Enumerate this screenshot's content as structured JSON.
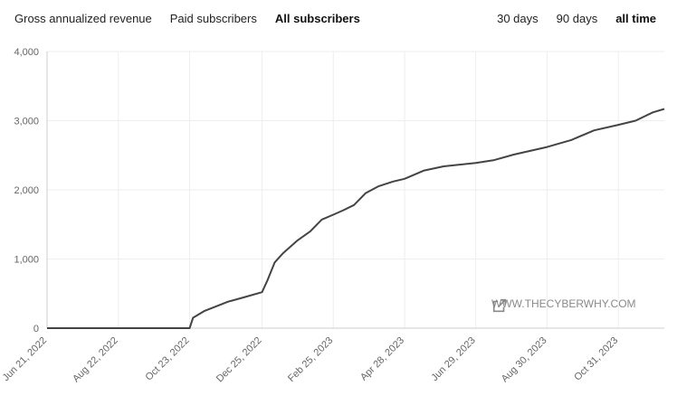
{
  "metric_tabs": [
    {
      "label": "Gross annualized revenue",
      "active": false
    },
    {
      "label": "Paid subscribers",
      "active": false
    },
    {
      "label": "All subscribers",
      "active": true
    }
  ],
  "range_tabs": [
    {
      "label": "30 days",
      "active": false
    },
    {
      "label": "90 days",
      "active": false
    },
    {
      "label": "all time",
      "active": true
    }
  ],
  "watermark": {
    "text": "WWW.THECYBERWHY.COM",
    "icon": "external-link-icon"
  },
  "colors": {
    "line": "#444444",
    "grid": "#eeeeee",
    "axis": "#cccccc"
  },
  "chart_data": {
    "type": "line",
    "title": "",
    "xlabel": "",
    "ylabel": "",
    "ylim": [
      0,
      4000
    ],
    "y_ticks": [
      "4,000",
      "3,000",
      "2,000",
      "1,000",
      "0"
    ],
    "x_ticks": [
      "Jun 21, 2022",
      "Aug 22, 2022",
      "Oct 23, 2022",
      "Dec 25, 2022",
      "Feb 25, 2023",
      "Apr 28, 2023",
      "Jun 29, 2023",
      "Aug 30, 2023",
      "Oct 31, 2023"
    ],
    "grid": true,
    "series": [
      {
        "x": [
          "2022-06-21",
          "2022-08-22",
          "2022-10-23",
          "2022-10-26",
          "2022-11-05",
          "2022-11-25",
          "2022-12-10",
          "2022-12-25",
          "2022-12-30",
          "2023-01-05",
          "2023-01-12",
          "2023-01-25",
          "2023-02-05",
          "2023-02-15",
          "2023-02-25",
          "2023-03-05",
          "2023-03-15",
          "2023-03-25",
          "2023-04-05",
          "2023-04-18",
          "2023-04-28",
          "2023-05-15",
          "2023-06-01",
          "2023-06-29",
          "2023-07-15",
          "2023-08-01",
          "2023-08-30",
          "2023-09-20",
          "2023-10-10",
          "2023-10-31",
          "2023-11-15",
          "2023-11-30",
          "2023-12-10"
        ],
        "values": [
          0,
          0,
          0,
          150,
          250,
          380,
          450,
          520,
          700,
          950,
          1080,
          1270,
          1400,
          1570,
          1640,
          1700,
          1780,
          1950,
          2050,
          2120,
          2160,
          2280,
          2340,
          2390,
          2430,
          2510,
          2620,
          2720,
          2860,
          2940,
          3000,
          3120,
          3170
        ]
      }
    ]
  }
}
